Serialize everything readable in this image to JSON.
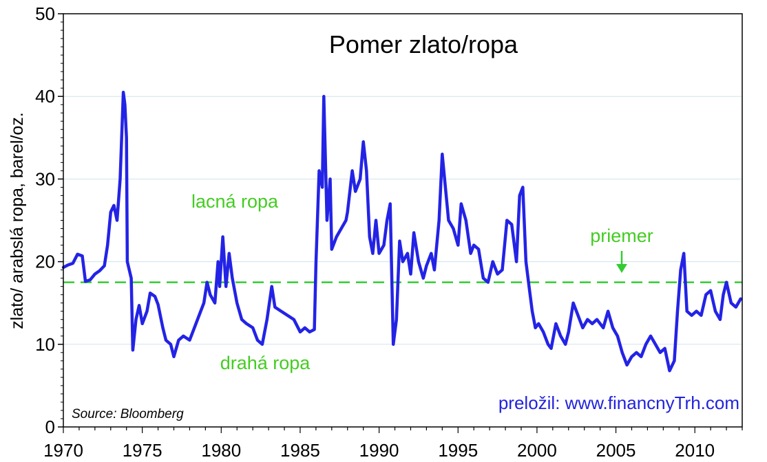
{
  "chart_data": {
    "type": "line",
    "title": "Pomer zlato/ropa",
    "xlabel": "",
    "ylabel": "zlato/ arabslá ropa, barel/oz.",
    "xlim": [
      1970,
      2013
    ],
    "ylim": [
      0,
      50
    ],
    "x_ticks": [
      "1970",
      "1975",
      "1980",
      "1985",
      "1990",
      "1995",
      "2000",
      "2005",
      "2010"
    ],
    "y_ticks": [
      "0",
      "10",
      "20",
      "30",
      "40",
      "50"
    ],
    "grid": "horizontal",
    "average": 17.5,
    "annotations": {
      "cheap_oil": "lacná ropa",
      "expensive_oil": "drahá ropa",
      "average": "priemer",
      "source": "Source: Bloomberg",
      "credit": "preložil: www.financnyTrh.com"
    },
    "colors": {
      "series": "#2323e6",
      "average": "#33cc33",
      "annotation": "#44cc22",
      "credit": "#2222dd",
      "grid": "#cfe3ee"
    },
    "series": [
      {
        "values": [
          [
            1970.0,
            19.3
          ],
          [
            1970.3,
            19.6
          ],
          [
            1970.6,
            19.8
          ],
          [
            1970.9,
            20.9
          ],
          [
            1971.2,
            20.7
          ],
          [
            1971.4,
            17.6
          ],
          [
            1971.7,
            17.8
          ],
          [
            1972.0,
            18.5
          ],
          [
            1972.3,
            18.9
          ],
          [
            1972.6,
            19.5
          ],
          [
            1972.8,
            22.0
          ],
          [
            1973.0,
            26.0
          ],
          [
            1973.2,
            26.8
          ],
          [
            1973.4,
            25.0
          ],
          [
            1973.6,
            30.0
          ],
          [
            1973.8,
            40.5
          ],
          [
            1973.9,
            39.0
          ],
          [
            1974.0,
            35.0
          ],
          [
            1974.05,
            20.0
          ],
          [
            1974.3,
            18.0
          ],
          [
            1974.4,
            9.3
          ],
          [
            1974.6,
            13.0
          ],
          [
            1974.8,
            14.7
          ],
          [
            1975.0,
            12.5
          ],
          [
            1975.3,
            14.0
          ],
          [
            1975.5,
            16.2
          ],
          [
            1975.8,
            15.8
          ],
          [
            1976.0,
            14.8
          ],
          [
            1976.3,
            12.0
          ],
          [
            1976.5,
            10.5
          ],
          [
            1976.8,
            10.0
          ],
          [
            1977.0,
            8.5
          ],
          [
            1977.3,
            10.5
          ],
          [
            1977.6,
            11.0
          ],
          [
            1978.0,
            10.5
          ],
          [
            1978.3,
            12.0
          ],
          [
            1978.6,
            13.5
          ],
          [
            1978.9,
            15.0
          ],
          [
            1979.1,
            17.5
          ],
          [
            1979.3,
            16.0
          ],
          [
            1979.6,
            15.0
          ],
          [
            1979.8,
            20.0
          ],
          [
            1979.9,
            17.0
          ],
          [
            1980.1,
            23.0
          ],
          [
            1980.3,
            17.0
          ],
          [
            1980.5,
            21.0
          ],
          [
            1980.7,
            18.0
          ],
          [
            1981.0,
            15.0
          ],
          [
            1981.3,
            13.0
          ],
          [
            1981.6,
            12.5
          ],
          [
            1982.0,
            12.0
          ],
          [
            1982.3,
            10.5
          ],
          [
            1982.6,
            10.0
          ],
          [
            1982.9,
            13.0
          ],
          [
            1983.2,
            17.0
          ],
          [
            1983.4,
            14.5
          ],
          [
            1983.8,
            14.0
          ],
          [
            1984.2,
            13.5
          ],
          [
            1984.6,
            13.0
          ],
          [
            1985.0,
            11.5
          ],
          [
            1985.3,
            12.0
          ],
          [
            1985.6,
            11.5
          ],
          [
            1985.9,
            11.8
          ],
          [
            1986.0,
            19.8
          ],
          [
            1986.2,
            31.0
          ],
          [
            1986.4,
            29.0
          ],
          [
            1986.5,
            40.0
          ],
          [
            1986.7,
            25.0
          ],
          [
            1986.9,
            30.0
          ],
          [
            1987.0,
            21.5
          ],
          [
            1987.3,
            23.0
          ],
          [
            1987.6,
            24.0
          ],
          [
            1987.9,
            25.0
          ],
          [
            1988.0,
            26.0
          ],
          [
            1988.3,
            31.0
          ],
          [
            1988.5,
            28.5
          ],
          [
            1988.8,
            30.0
          ],
          [
            1989.0,
            34.5
          ],
          [
            1989.2,
            31.0
          ],
          [
            1989.4,
            23.0
          ],
          [
            1989.6,
            21.0
          ],
          [
            1989.8,
            25.0
          ],
          [
            1990.0,
            21.0
          ],
          [
            1990.3,
            22.0
          ],
          [
            1990.5,
            25.0
          ],
          [
            1990.7,
            27.0
          ],
          [
            1990.9,
            10.0
          ],
          [
            1991.1,
            13.0
          ],
          [
            1991.3,
            22.5
          ],
          [
            1991.5,
            20.0
          ],
          [
            1991.8,
            21.0
          ],
          [
            1992.0,
            18.5
          ],
          [
            1992.2,
            23.5
          ],
          [
            1992.5,
            20.0
          ],
          [
            1992.8,
            18.0
          ],
          [
            1993.0,
            19.5
          ],
          [
            1993.3,
            21.0
          ],
          [
            1993.5,
            19.0
          ],
          [
            1993.8,
            25.0
          ],
          [
            1994.0,
            33.0
          ],
          [
            1994.2,
            29.0
          ],
          [
            1994.4,
            25.0
          ],
          [
            1994.7,
            24.0
          ],
          [
            1995.0,
            22.0
          ],
          [
            1995.2,
            27.0
          ],
          [
            1995.5,
            25.0
          ],
          [
            1995.8,
            21.0
          ],
          [
            1996.0,
            22.0
          ],
          [
            1996.3,
            21.5
          ],
          [
            1996.6,
            18.0
          ],
          [
            1996.9,
            17.5
          ],
          [
            1997.2,
            20.0
          ],
          [
            1997.5,
            18.5
          ],
          [
            1997.8,
            19.0
          ],
          [
            1998.1,
            25.0
          ],
          [
            1998.4,
            24.5
          ],
          [
            1998.7,
            20.0
          ],
          [
            1998.9,
            28.0
          ],
          [
            1999.1,
            29.0
          ],
          [
            1999.3,
            20.0
          ],
          [
            1999.5,
            17.0
          ],
          [
            1999.7,
            14.0
          ],
          [
            1999.9,
            12.0
          ],
          [
            2000.1,
            12.5
          ],
          [
            2000.4,
            11.5
          ],
          [
            2000.7,
            10.0
          ],
          [
            2000.9,
            9.5
          ],
          [
            2001.2,
            12.5
          ],
          [
            2001.5,
            11.0
          ],
          [
            2001.8,
            10.0
          ],
          [
            2002.0,
            11.5
          ],
          [
            2002.3,
            15.0
          ],
          [
            2002.6,
            13.5
          ],
          [
            2002.9,
            12.0
          ],
          [
            2003.2,
            13.0
          ],
          [
            2003.5,
            12.5
          ],
          [
            2003.8,
            13.0
          ],
          [
            2004.2,
            12.0
          ],
          [
            2004.5,
            14.0
          ],
          [
            2004.8,
            12.0
          ],
          [
            2005.1,
            11.0
          ],
          [
            2005.4,
            9.0
          ],
          [
            2005.7,
            7.5
          ],
          [
            2006.0,
            8.5
          ],
          [
            2006.3,
            9.0
          ],
          [
            2006.6,
            8.5
          ],
          [
            2006.9,
            10.0
          ],
          [
            2007.2,
            11.0
          ],
          [
            2007.5,
            10.0
          ],
          [
            2007.8,
            9.0
          ],
          [
            2008.1,
            9.5
          ],
          [
            2008.4,
            6.8
          ],
          [
            2008.7,
            8.0
          ],
          [
            2008.9,
            14.0
          ],
          [
            2009.1,
            19.0
          ],
          [
            2009.3,
            21.0
          ],
          [
            2009.5,
            14.0
          ],
          [
            2009.8,
            13.5
          ],
          [
            2010.1,
            14.0
          ],
          [
            2010.4,
            13.5
          ],
          [
            2010.7,
            16.0
          ],
          [
            2011.0,
            16.5
          ],
          [
            2011.3,
            14.0
          ],
          [
            2011.6,
            13.0
          ],
          [
            2011.8,
            16.0
          ],
          [
            2012.0,
            17.5
          ],
          [
            2012.3,
            15.0
          ],
          [
            2012.6,
            14.5
          ],
          [
            2012.9,
            15.5
          ]
        ]
      }
    ]
  }
}
